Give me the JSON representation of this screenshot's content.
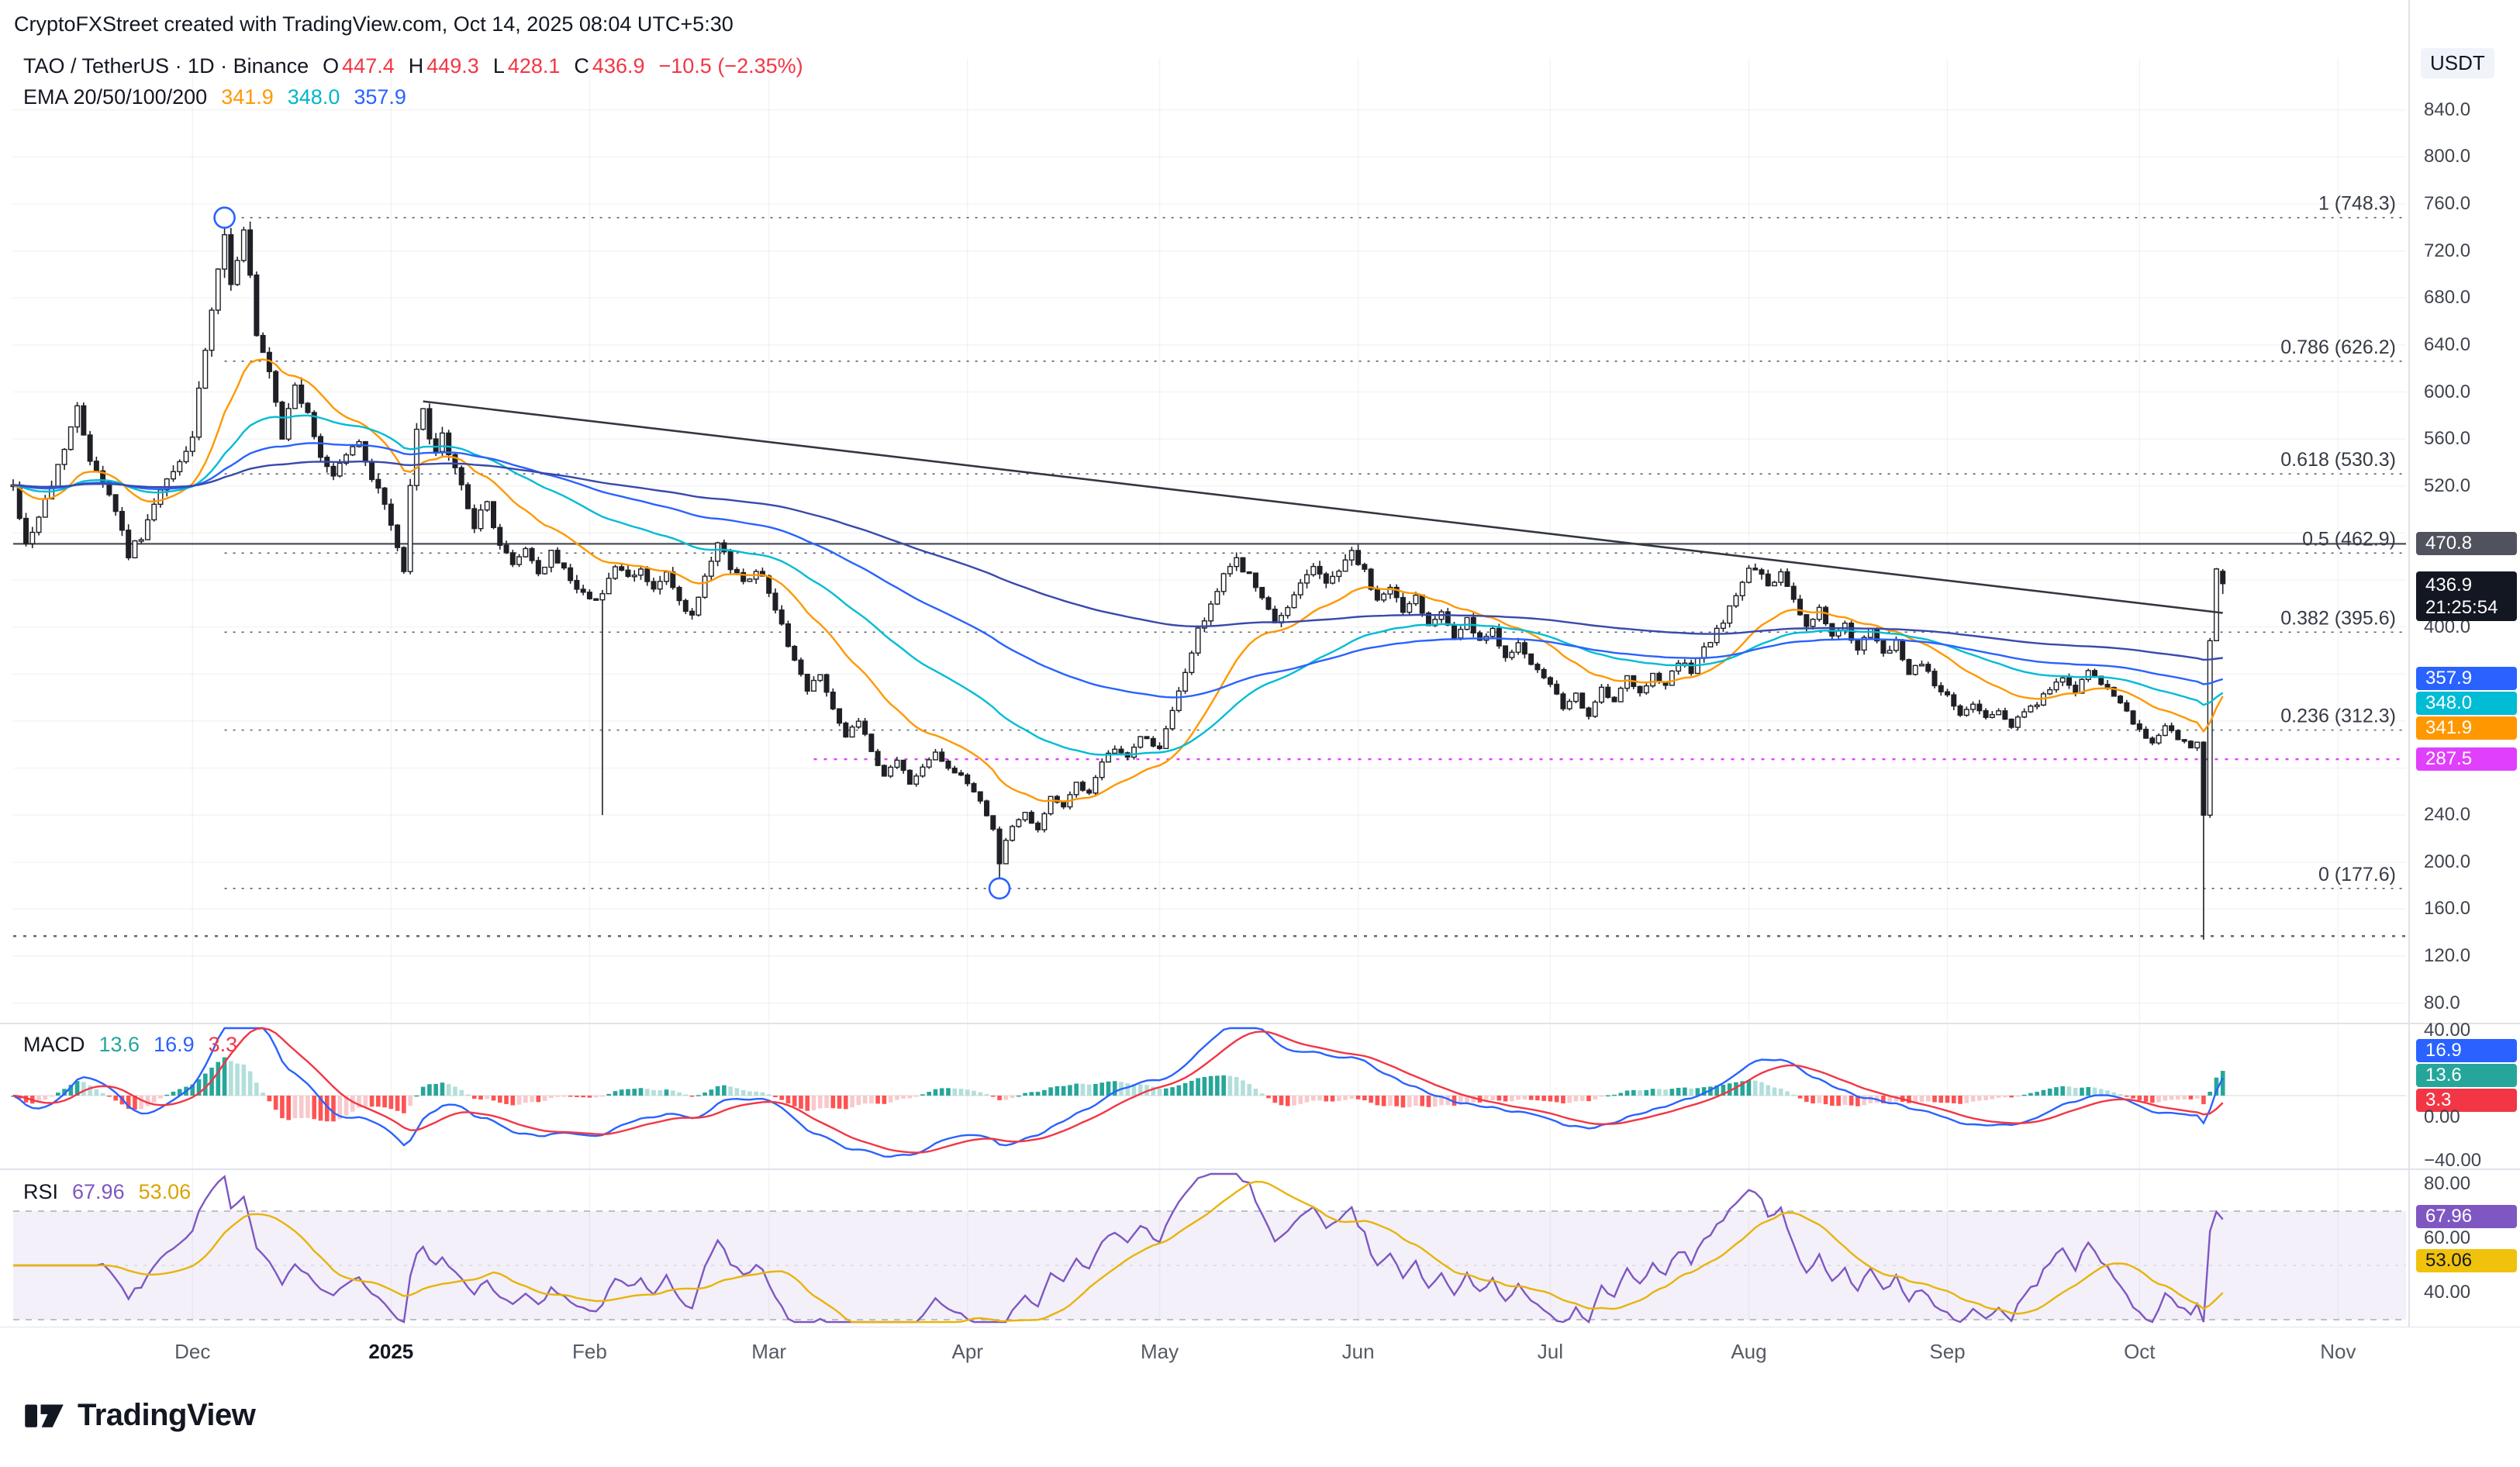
{
  "meta": {
    "credit": "CryptoFXStreet created with TradingView.com, Oct 14, 2025 08:04 UTC+5:30"
  },
  "symbol": {
    "title": "TAO / TetherUS · 1D · Binance",
    "ohlc": {
      "o_label": "O",
      "o": "447.4",
      "h_label": "H",
      "h": "449.3",
      "l_label": "L",
      "l": "428.1",
      "c_label": "C",
      "c": "436.9",
      "change": "−10.5 (−2.35%)"
    }
  },
  "ema_legend": {
    "label": "EMA 20/50/100/200",
    "v20": "341.9",
    "v50": "348.0",
    "v100": "357.9"
  },
  "macd_legend": {
    "label": "MACD",
    "hist": "13.6",
    "macd": "16.9",
    "signal": "3.3"
  },
  "rsi_legend": {
    "label": "RSI",
    "rsi": "67.96",
    "ma": "53.06"
  },
  "price_scale": {
    "currency": "USDT",
    "ticks": [
      "840.0",
      "800.0",
      "760.0",
      "720.0",
      "680.0",
      "640.0",
      "600.0",
      "560.0",
      "520.0",
      "400.0",
      "240.0",
      "200.0",
      "160.0",
      "120.0",
      "80.0"
    ],
    "line_470_label": "470.8",
    "last_price": "436.9",
    "countdown": "21:25:54",
    "ema100_label": "357.9",
    "ema50_label": "348.0",
    "ema20_label": "341.9",
    "level_287_label": "287.5"
  },
  "macd_scale": {
    "ticks": [
      {
        "value": 40,
        "label": "40.00"
      },
      {
        "value": 0,
        "label": "0.00"
      },
      {
        "value": -40,
        "label": "−40.00"
      }
    ],
    "macd_label": "16.9",
    "hist_label": "13.6",
    "signal_label": "3.3"
  },
  "rsi_scale": {
    "ticks": [
      {
        "value": 80,
        "label": "80.00"
      },
      {
        "value": 60,
        "label": "60.00"
      },
      {
        "value": 40,
        "label": "40.00"
      }
    ],
    "rsi_label": "67.96",
    "ma_label": "53.06"
  },
  "time_axis": {
    "months": [
      {
        "label": "Dec",
        "day": 28
      },
      {
        "label": "2025",
        "day": 59,
        "bold": true
      },
      {
        "label": "Feb",
        "day": 90
      },
      {
        "label": "Mar",
        "day": 118
      },
      {
        "label": "Apr",
        "day": 149
      },
      {
        "label": "May",
        "day": 179
      },
      {
        "label": "Jun",
        "day": 210
      },
      {
        "label": "Jul",
        "day": 240
      },
      {
        "label": "Aug",
        "day": 271
      },
      {
        "label": "Sep",
        "day": 302
      },
      {
        "label": "Oct",
        "day": 332
      },
      {
        "label": "Nov",
        "day": 363
      }
    ]
  },
  "logo": {
    "text": "TradingView"
  },
  "colors": {
    "up_candle": "#ffffff",
    "down_candle": "#1e2026",
    "candle_stroke": "#1e2026",
    "ema20": "#ff9800",
    "ema50": "#00bcd4",
    "ema100": "#2962ff",
    "ema200": "#3949ab",
    "macd_line": "#2962ff",
    "signal_line": "#f23645",
    "hist_pos": "#26a69a",
    "hist_pos_weak": "#b2dfdb",
    "hist_neg": "#ff5252",
    "hist_neg_weak": "#f8c9cc",
    "rsi_line": "#7e57c2",
    "rsi_ma": "#e8b40a",
    "rsi_band_fill": "rgba(126,87,194,0.09)",
    "level_287": "#e040fb",
    "fib": "#5d606b",
    "trendline": "#33373f",
    "line_470": "#4a4e59",
    "grid": "rgba(40,44,52,0.05)",
    "separator": "#e0e3eb"
  },
  "chart_data": {
    "type": "candlestick",
    "symbol": "TAO/USDT",
    "exchange": "Binance",
    "timeframe": "1D",
    "end_day": 345,
    "seed": 42,
    "noise": 0.016,
    "last_candle": {
      "open": 447.4,
      "high": 449.3,
      "low": 428.1,
      "close": 436.9,
      "change": -10.5,
      "change_pct": -2.35
    },
    "price_path": [
      [
        0,
        520
      ],
      [
        2,
        470
      ],
      [
        4,
        495
      ],
      [
        6,
        520
      ],
      [
        8,
        555
      ],
      [
        10,
        585
      ],
      [
        12,
        545
      ],
      [
        14,
        525
      ],
      [
        16,
        500
      ],
      [
        18,
        462
      ],
      [
        20,
        478
      ],
      [
        23,
        515
      ],
      [
        26,
        540
      ],
      [
        28,
        562
      ],
      [
        30,
        635
      ],
      [
        32,
        700
      ],
      [
        33,
        730
      ],
      [
        34,
        695
      ],
      [
        35,
        715
      ],
      [
        36,
        736
      ],
      [
        37,
        698
      ],
      [
        38,
        645
      ],
      [
        40,
        615
      ],
      [
        42,
        560
      ],
      [
        44,
        608
      ],
      [
        46,
        578
      ],
      [
        48,
        545
      ],
      [
        50,
        530
      ],
      [
        52,
        548
      ],
      [
        54,
        556
      ],
      [
        56,
        528
      ],
      [
        58,
        505
      ],
      [
        60,
        468
      ],
      [
        61,
        445
      ],
      [
        62,
        520
      ],
      [
        63,
        565
      ],
      [
        64,
        590
      ],
      [
        65,
        560
      ],
      [
        66,
        545
      ],
      [
        67,
        562
      ],
      [
        68,
        548
      ],
      [
        70,
        520
      ],
      [
        72,
        487
      ],
      [
        74,
        505
      ],
      [
        76,
        470
      ],
      [
        78,
        452
      ],
      [
        80,
        468
      ],
      [
        82,
        445
      ],
      [
        84,
        462
      ],
      [
        86,
        448
      ],
      [
        88,
        435
      ],
      [
        90,
        422
      ],
      [
        92,
        430
      ],
      [
        94,
        452
      ],
      [
        96,
        440
      ],
      [
        98,
        448
      ],
      [
        100,
        432
      ],
      [
        102,
        445
      ],
      [
        104,
        420
      ],
      [
        106,
        408
      ],
      [
        108,
        440
      ],
      [
        110,
        470
      ],
      [
        112,
        452
      ],
      [
        114,
        438
      ],
      [
        116,
        450
      ],
      [
        118,
        432
      ],
      [
        120,
        400
      ],
      [
        122,
        372
      ],
      [
        124,
        345
      ],
      [
        126,
        362
      ],
      [
        128,
        330
      ],
      [
        130,
        305
      ],
      [
        132,
        322
      ],
      [
        134,
        292
      ],
      [
        136,
        272
      ],
      [
        138,
        288
      ],
      [
        140,
        266
      ],
      [
        142,
        282
      ],
      [
        144,
        295
      ],
      [
        146,
        280
      ],
      [
        149,
        268
      ],
      [
        151,
        252
      ],
      [
        153,
        228
      ],
      [
        154,
        200
      ],
      [
        155,
        218
      ],
      [
        156,
        230
      ],
      [
        158,
        242
      ],
      [
        160,
        228
      ],
      [
        162,
        256
      ],
      [
        164,
        246
      ],
      [
        166,
        268
      ],
      [
        168,
        258
      ],
      [
        170,
        283
      ],
      [
        172,
        298
      ],
      [
        174,
        288
      ],
      [
        176,
        308
      ],
      [
        179,
        296
      ],
      [
        181,
        328
      ],
      [
        183,
        362
      ],
      [
        185,
        396
      ],
      [
        187,
        420
      ],
      [
        189,
        442
      ],
      [
        191,
        458
      ],
      [
        193,
        443
      ],
      [
        195,
        424
      ],
      [
        197,
        402
      ],
      [
        199,
        416
      ],
      [
        201,
        440
      ],
      [
        203,
        452
      ],
      [
        205,
        436
      ],
      [
        207,
        450
      ],
      [
        209,
        464
      ],
      [
        211,
        446
      ],
      [
        213,
        420
      ],
      [
        215,
        436
      ],
      [
        217,
        412
      ],
      [
        219,
        426
      ],
      [
        221,
        402
      ],
      [
        223,
        416
      ],
      [
        225,
        392
      ],
      [
        227,
        406
      ],
      [
        229,
        386
      ],
      [
        231,
        396
      ],
      [
        233,
        376
      ],
      [
        235,
        386
      ],
      [
        237,
        366
      ],
      [
        240,
        352
      ],
      [
        242,
        330
      ],
      [
        244,
        341
      ],
      [
        246,
        326
      ],
      [
        248,
        346
      ],
      [
        250,
        336
      ],
      [
        252,
        356
      ],
      [
        254,
        342
      ],
      [
        256,
        361
      ],
      [
        258,
        351
      ],
      [
        260,
        371
      ],
      [
        262,
        362
      ],
      [
        264,
        381
      ],
      [
        266,
        396
      ],
      [
        268,
        416
      ],
      [
        270,
        441
      ],
      [
        272,
        452
      ],
      [
        274,
        432
      ],
      [
        276,
        446
      ],
      [
        278,
        421
      ],
      [
        280,
        401
      ],
      [
        282,
        416
      ],
      [
        284,
        391
      ],
      [
        286,
        401
      ],
      [
        288,
        381
      ],
      [
        290,
        396
      ],
      [
        292,
        376
      ],
      [
        294,
        386
      ],
      [
        296,
        361
      ],
      [
        298,
        371
      ],
      [
        300,
        351
      ],
      [
        302,
        341
      ],
      [
        304,
        326
      ],
      [
        306,
        336
      ],
      [
        308,
        321
      ],
      [
        310,
        331
      ],
      [
        312,
        316
      ],
      [
        314,
        326
      ],
      [
        316,
        336
      ],
      [
        318,
        346
      ],
      [
        320,
        356
      ],
      [
        322,
        346
      ],
      [
        324,
        361
      ],
      [
        326,
        351
      ],
      [
        328,
        341
      ],
      [
        330,
        326
      ],
      [
        332,
        311
      ],
      [
        334,
        301
      ],
      [
        336,
        316
      ],
      [
        338,
        306
      ],
      [
        340,
        296
      ],
      [
        341,
        302
      ],
      [
        342,
        240
      ],
      [
        343,
        388
      ],
      [
        344,
        446
      ],
      [
        345,
        436.9
      ]
    ],
    "ohlc_overrides": {
      "33": {
        "high": 748.3
      },
      "92": {
        "low": 240
      },
      "154": {
        "low": 177.6
      },
      "342": {
        "low": 134
      },
      "345": {
        "open": 447.4,
        "high": 449.3,
        "low": 428.1,
        "close": 436.9
      }
    },
    "fib_from_day": 33,
    "fib_levels": [
      {
        "label": "1 (748.3)",
        "price": 748.3
      },
      {
        "label": "0.786 (626.2)",
        "price": 626.2
      },
      {
        "label": "0.618 (530.3)",
        "price": 530.3
      },
      {
        "label": "0.5 (462.9)",
        "price": 462.9
      },
      {
        "label": "0.382 (395.6)",
        "price": 395.6
      },
      {
        "label": "0.236 (312.3)",
        "price": 312.3
      },
      {
        "label": "0 (177.6)",
        "price": 177.6
      }
    ],
    "horizontal_lines": [
      {
        "price": 470.8,
        "style": "solid",
        "color_key": "line_470",
        "label": "470.8",
        "from_day": 0
      },
      {
        "price": 287.5,
        "style": "dotted",
        "color_key": "level_287",
        "label": "287.5",
        "from_day": 125
      },
      {
        "price": 137.0,
        "style": "dotted",
        "color_key": "fib",
        "label": "",
        "from_day": 0
      }
    ],
    "trendline": {
      "from_day": 64,
      "from_price": 592,
      "to_day": 345,
      "to_price": 412
    },
    "markers": [
      {
        "day": 33,
        "price": 748.3,
        "type": "circle"
      },
      {
        "day": 154,
        "price": 177.6,
        "type": "circle"
      }
    ],
    "indicators": {
      "ema_periods": [
        20,
        50,
        100,
        200
      ],
      "ema_last_values": {
        "ema20": 341.9,
        "ema50": 348.0,
        "ema100": 357.9
      },
      "macd": {
        "fast": 12,
        "slow": 26,
        "signal": 9,
        "last_hist": 13.6,
        "last_macd": 16.9,
        "last_signal": 3.3,
        "ylim": [
          -40,
          40
        ]
      },
      "rsi": {
        "period": 14,
        "ma_period": 14,
        "last_rsi": 67.96,
        "last_ma": 53.06,
        "bands": [
          70,
          30
        ],
        "ylim": [
          30,
          80
        ]
      }
    },
    "price_axis": {
      "ymax": 884,
      "ymin": 64,
      "grid_step": 40,
      "visible_ticks": [
        840,
        800,
        760,
        720,
        680,
        640,
        600,
        560,
        520,
        400,
        240,
        200,
        160,
        120,
        80
      ]
    }
  }
}
